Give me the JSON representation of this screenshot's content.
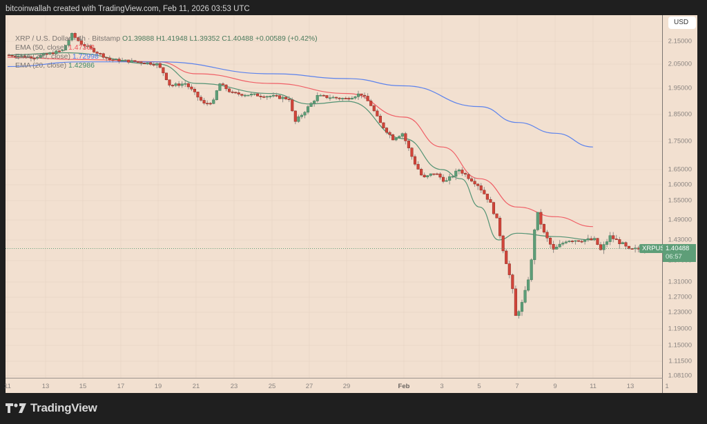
{
  "header": {
    "attribution": "bitcoinwallah created with TradingView.com, Feb 11, 2026 03:53 UTC"
  },
  "legend": {
    "symbol_line": "XRP / U.S. Dollar · 4h · Bitstamp",
    "open": "O1.39888",
    "high": "H1.41948",
    "low": "L1.39352",
    "close": "C1.40488",
    "change": "+0.00589 (+0.42%)",
    "indicators": [
      {
        "label": "EMA (50, close)",
        "value": "1.47362",
        "color": "#f0505a"
      },
      {
        "label": "EMA (200, close)",
        "value": "1.72998",
        "color": "#4a78f0"
      },
      {
        "label": "EMA (20, close)",
        "value": "1.42986",
        "color": "#3f8a68"
      }
    ]
  },
  "price_axis": {
    "currency_button": "USD",
    "labels": [
      "2.15000",
      "2.05000",
      "1.95000",
      "1.85000",
      "1.75000",
      "1.65000",
      "1.60000",
      "1.55000",
      "1.49000",
      "1.43000",
      "1.37000",
      "1.31000",
      "1.27000",
      "1.23000",
      "1.19000",
      "1.15000",
      "1.11500",
      "1.08100"
    ]
  },
  "last_price": {
    "symbol_tag": "XRPUSD",
    "price": "1.40488",
    "countdown": "06:57"
  },
  "time_axis": {
    "labels": [
      "11",
      "13",
      "15",
      "17",
      "19",
      "21",
      "23",
      "25",
      "27",
      "29",
      "Feb",
      "3",
      "5",
      "7",
      "9",
      "11",
      "13",
      "1"
    ]
  },
  "brand": {
    "name": "TradingView"
  },
  "colors": {
    "background": "#f2e0d0",
    "bull": "#5e9e78",
    "bear": "#d2453a",
    "ema20": "#3f8a68",
    "ema50": "#f0505a",
    "ema200": "#4a78f0"
  },
  "chart_data": {
    "type": "candlestick",
    "title": "XRP / U.S. Dollar · 4h · Bitstamp",
    "xlabel": "",
    "ylabel": "USD",
    "ylim": [
      1.081,
      2.2
    ],
    "x_ticks": [
      "Jan 11",
      "Jan 13",
      "Jan 15",
      "Jan 17",
      "Jan 19",
      "Jan 21",
      "Jan 23",
      "Jan 25",
      "Jan 27",
      "Jan 29",
      "Feb 1",
      "Feb 3",
      "Feb 5",
      "Feb 7",
      "Feb 9",
      "Feb 11",
      "Feb 13"
    ],
    "last_ohlc": {
      "open": 1.39888,
      "high": 1.41948,
      "low": 1.39352,
      "close": 1.40488,
      "change": 0.00589,
      "change_pct": 0.42
    },
    "series": [
      {
        "name": "EMA 20 (close)",
        "last": 1.42986,
        "approx_path": [
          [
            "Jan 11",
            2.09
          ],
          [
            "Jan 14",
            2.1
          ],
          [
            "Jan 19",
            2.05
          ],
          [
            "Jan 21",
            1.97
          ],
          [
            "Jan 25",
            1.93
          ],
          [
            "Jan 27",
            1.89
          ],
          [
            "Jan 29",
            1.9
          ],
          [
            "Feb 1",
            1.76
          ],
          [
            "Feb 3",
            1.65
          ],
          [
            "Feb 4",
            1.62
          ],
          [
            "Feb 5",
            1.53
          ],
          [
            "Feb 6",
            1.43
          ],
          [
            "Feb 7",
            1.45
          ],
          [
            "Feb 9",
            1.44
          ],
          [
            "Feb 11",
            1.43
          ]
        ]
      },
      {
        "name": "EMA 50 (close)",
        "last": 1.47362,
        "approx_path": [
          [
            "Jan 11",
            2.08
          ],
          [
            "Jan 15",
            2.07
          ],
          [
            "Jan 19",
            2.06
          ],
          [
            "Jan 21",
            2.01
          ],
          [
            "Jan 25",
            1.97
          ],
          [
            "Jan 29",
            1.93
          ],
          [
            "Feb 1",
            1.84
          ],
          [
            "Feb 3",
            1.73
          ],
          [
            "Feb 5",
            1.62
          ],
          [
            "Feb 7",
            1.53
          ],
          [
            "Feb 9",
            1.5
          ],
          [
            "Feb 11",
            1.47
          ]
        ]
      },
      {
        "name": "EMA 200 (close)",
        "last": 1.72998,
        "approx_path": [
          [
            "Jan 11",
            2.04
          ],
          [
            "Jan 15",
            2.06
          ],
          [
            "Jan 19",
            2.06
          ],
          [
            "Jan 25",
            2.01
          ],
          [
            "Jan 29",
            1.99
          ],
          [
            "Feb 1",
            1.96
          ],
          [
            "Feb 5",
            1.88
          ],
          [
            "Feb 7",
            1.82
          ],
          [
            "Feb 9",
            1.78
          ],
          [
            "Feb 11",
            1.73
          ]
        ]
      }
    ],
    "key_points": {
      "period_high_approx": 2.19,
      "period_low_approx": 1.12,
      "low_date": "Feb 6"
    },
    "grid": true,
    "legend_position": "top-left"
  }
}
